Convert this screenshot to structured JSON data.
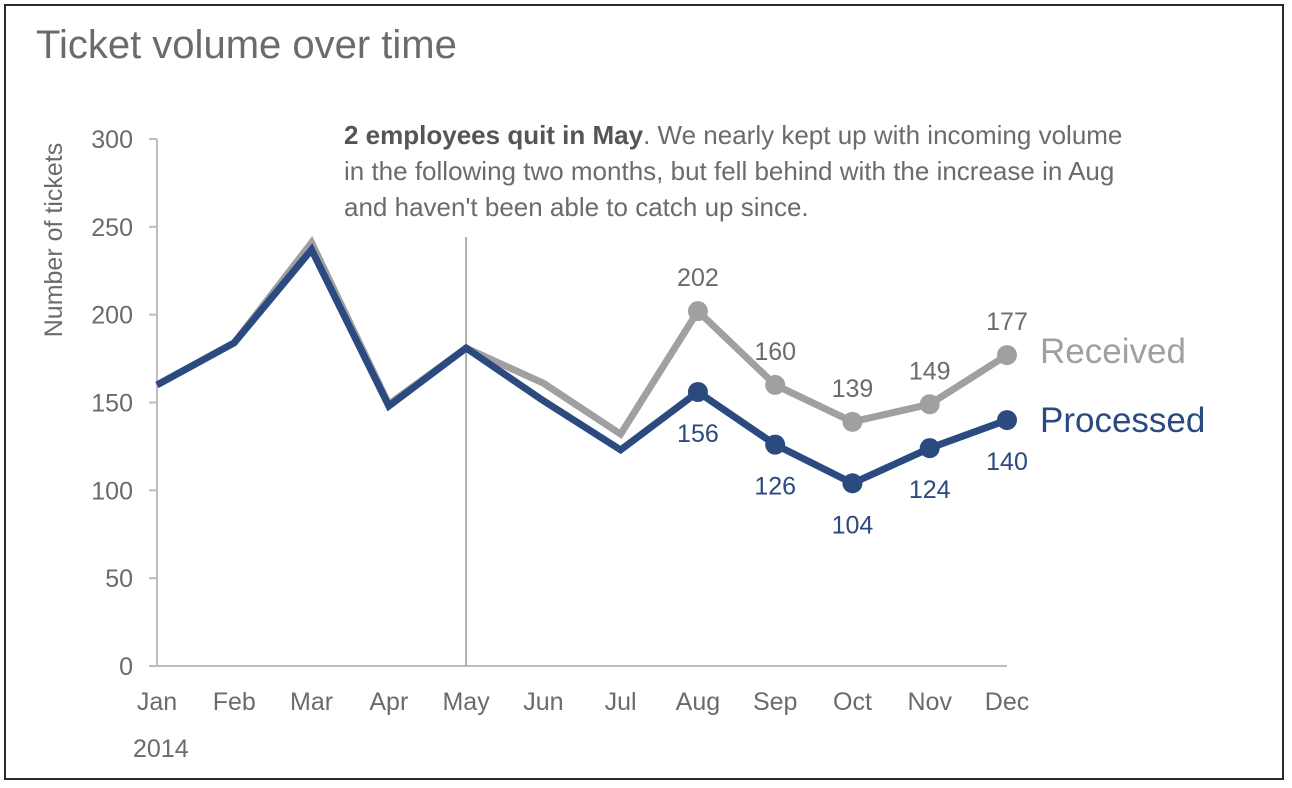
{
  "chart_data": {
    "type": "line",
    "title": "Ticket volume over time",
    "ylabel": "Number of tickets",
    "xlabel": "",
    "year_label": "2014",
    "categories": [
      "Jan",
      "Feb",
      "Mar",
      "Apr",
      "May",
      "Jun",
      "Jul",
      "Aug",
      "Sep",
      "Oct",
      "Nov",
      "Dec"
    ],
    "ylim": [
      0,
      300
    ],
    "yticks": [
      0,
      50,
      100,
      150,
      200,
      250,
      300
    ],
    "grid": false,
    "series": [
      {
        "name": "Received",
        "color": "#a0a0a0",
        "values": [
          160,
          184,
          241,
          149,
          181,
          161,
          132,
          202,
          160,
          139,
          149,
          177
        ],
        "labeled_from_index": 7
      },
      {
        "name": "Processed",
        "color": "#2a4a80",
        "values": [
          160,
          184,
          237,
          148,
          181,
          151,
          123,
          156,
          126,
          104,
          124,
          140
        ],
        "labeled_from_index": 7
      }
    ],
    "annotation": {
      "bold": "2 employees quit in May",
      "rest_line1": ". We nearly kept up with incoming volume",
      "line2": "in the following two months, but fell behind with the increase in Aug",
      "line3": "and haven't been able to catch up since."
    },
    "marker_line_category": "May"
  }
}
